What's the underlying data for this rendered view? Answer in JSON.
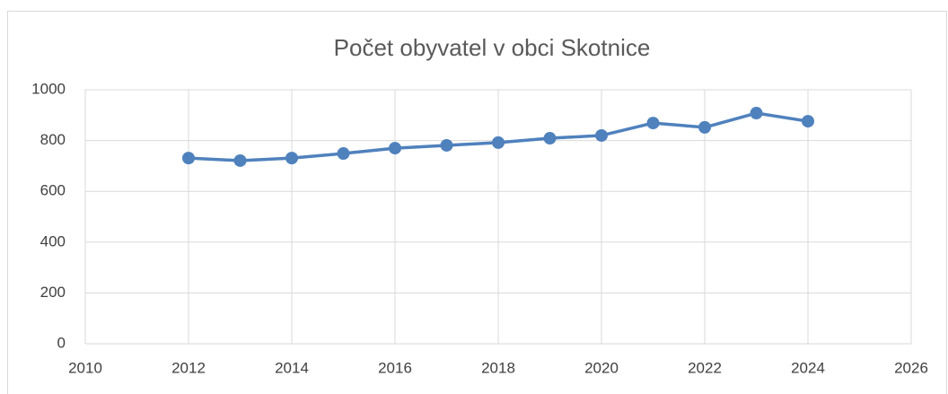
{
  "chart_data": {
    "type": "line",
    "title": "Počet obyvatel v obci Skotnice",
    "x": [
      2012,
      2013,
      2014,
      2015,
      2016,
      2017,
      2018,
      2019,
      2020,
      2021,
      2022,
      2023,
      2024
    ],
    "series": [
      {
        "name": "Počet obyvatel",
        "color": "#4f81bd",
        "values": [
          731,
          721,
          731,
          749,
          770,
          781,
          792,
          809,
          820,
          869,
          852,
          908,
          876
        ]
      }
    ],
    "xlim": [
      2010,
      2026
    ],
    "xticks": [
      2010,
      2012,
      2014,
      2016,
      2018,
      2020,
      2022,
      2024,
      2026
    ],
    "ylim": [
      0,
      1000
    ],
    "yticks": [
      0,
      200,
      400,
      600,
      800,
      1000
    ],
    "grid": true
  }
}
